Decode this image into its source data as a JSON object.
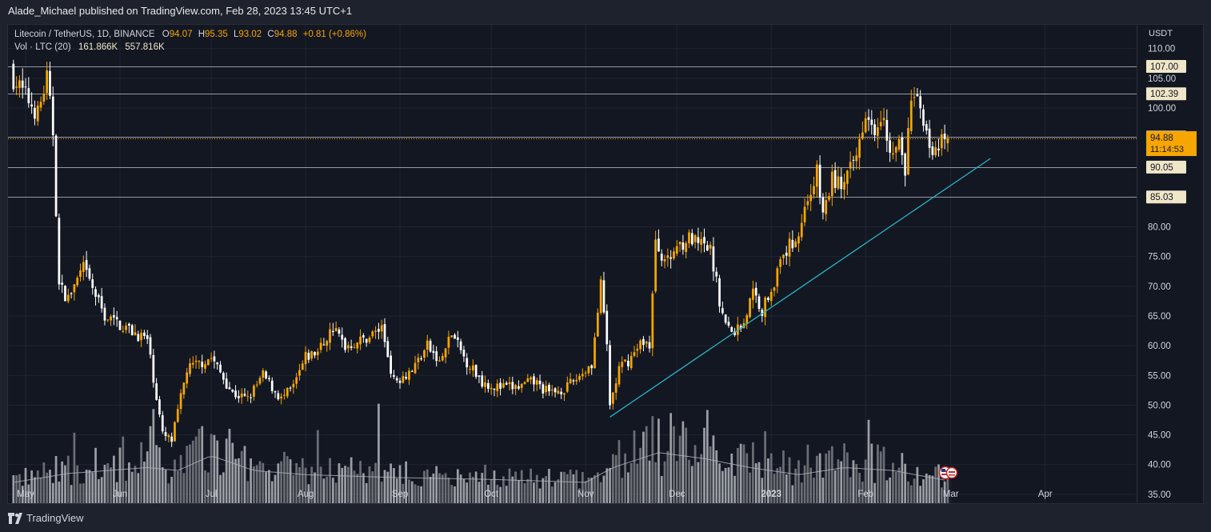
{
  "header": {
    "publisher_line": "Alade_Michael published on TradingView.com, Feb 28, 2023 13:45 UTC+1"
  },
  "footer": {
    "brand": "TradingView"
  },
  "legend": {
    "symbol": "Litecoin / TetherUS, 1D, BINANCE",
    "o_label": "O",
    "o": "94.07",
    "h_label": "H",
    "h": "95.35",
    "l_label": "L",
    "l": "93.02",
    "c_label": "C",
    "c": "94.88",
    "change": "+0.81 (+0.86%)",
    "vol_label": "Vol · LTC (20)",
    "vol": "161.866K",
    "vol_ma": "557.816K"
  },
  "colors": {
    "background": "#131722",
    "up": "#f7a600",
    "down": "#ffffff",
    "trendline": "#26b5c9",
    "level_line": "#9598a1",
    "price_line": "#f7a600"
  },
  "chart_data": {
    "type": "candlestick",
    "symbol": "Litecoin / TetherUS",
    "interval": "1D",
    "exchange": "BINANCE",
    "currency": "USDT",
    "y_range": [
      33.5,
      114
    ],
    "y_ticks": [
      "110.00",
      "105.00",
      "100.00",
      "95.00",
      "90.00",
      "85.00",
      "80.00",
      "75.00",
      "70.00",
      "65.00",
      "60.00",
      "55.00",
      "50.00",
      "45.00",
      "40.00",
      "35.00"
    ],
    "x_labels": [
      "May",
      "Jun",
      "Jul",
      "Aug",
      "Sep",
      "Oct",
      "Nov",
      "Dec",
      "2023",
      "Feb",
      "Mar",
      "Apr"
    ],
    "x_range": [
      "2022-04-26",
      "2023-04-30"
    ],
    "last_candle_date": "2023-02-28",
    "horizontal_levels": [
      "107.00",
      "102.39",
      "95.10",
      "90.05",
      "85.03"
    ],
    "last_price": {
      "value": "94.88",
      "countdown": "11:14:53"
    },
    "trendline": {
      "start": [
        "2022-11-09",
        48.0
      ],
      "end": [
        "2023-03-14",
        91.5
      ]
    },
    "close_path": [
      [
        "2022-04-27",
        105
      ],
      [
        "2022-05-05",
        99
      ],
      [
        "2022-05-08",
        105
      ],
      [
        "2022-05-10",
        96
      ],
      [
        "2022-05-12",
        70
      ],
      [
        "2022-05-15",
        68
      ],
      [
        "2022-05-20",
        73
      ],
      [
        "2022-05-27",
        65
      ],
      [
        "2022-06-03",
        63
      ],
      [
        "2022-06-10",
        61
      ],
      [
        "2022-06-15",
        45
      ],
      [
        "2022-06-18",
        44
      ],
      [
        "2022-06-23",
        56
      ],
      [
        "2022-07-01",
        58
      ],
      [
        "2022-07-08",
        52
      ],
      [
        "2022-07-13",
        51
      ],
      [
        "2022-07-18",
        55
      ],
      [
        "2022-07-24",
        51
      ],
      [
        "2022-07-28",
        53
      ],
      [
        "2022-08-01",
        58
      ],
      [
        "2022-08-05",
        59
      ],
      [
        "2022-08-10",
        63
      ],
      [
        "2022-08-14",
        60
      ],
      [
        "2022-08-20",
        61
      ],
      [
        "2022-08-26",
        63
      ],
      [
        "2022-08-30",
        54
      ],
      [
        "2022-09-05",
        56
      ],
      [
        "2022-09-10",
        60
      ],
      [
        "2022-09-14",
        57
      ],
      [
        "2022-09-18",
        62
      ],
      [
        "2022-09-22",
        58
      ],
      [
        "2022-09-28",
        54
      ],
      [
        "2022-10-03",
        53
      ],
      [
        "2022-10-10",
        53
      ],
      [
        "2022-10-15",
        54
      ],
      [
        "2022-10-20",
        52
      ],
      [
        "2022-10-26",
        53
      ],
      [
        "2022-10-30",
        55
      ],
      [
        "2022-11-03",
        57
      ],
      [
        "2022-11-06",
        70
      ],
      [
        "2022-11-08",
        60
      ],
      [
        "2022-11-09",
        50
      ],
      [
        "2022-11-12",
        56
      ],
      [
        "2022-11-16",
        58
      ],
      [
        "2022-11-20",
        61
      ],
      [
        "2022-11-22",
        60
      ],
      [
        "2022-11-24",
        77
      ],
      [
        "2022-11-28",
        74
      ],
      [
        "2022-12-01",
        77
      ],
      [
        "2022-12-05",
        78
      ],
      [
        "2022-12-08",
        77
      ],
      [
        "2022-12-12",
        76
      ],
      [
        "2022-12-16",
        65
      ],
      [
        "2022-12-19",
        62
      ],
      [
        "2022-12-23",
        64
      ],
      [
        "2022-12-26",
        69
      ],
      [
        "2022-12-29",
        66
      ],
      [
        "2023-01-02",
        71
      ],
      [
        "2023-01-06",
        76
      ],
      [
        "2023-01-10",
        79
      ],
      [
        "2023-01-13",
        85
      ],
      [
        "2023-01-16",
        89
      ],
      [
        "2023-01-18",
        82
      ],
      [
        "2023-01-21",
        88
      ],
      [
        "2023-01-25",
        87
      ],
      [
        "2023-01-29",
        92
      ],
      [
        "2023-02-01",
        100
      ],
      [
        "2023-02-04",
        97
      ],
      [
        "2023-02-07",
        100
      ],
      [
        "2023-02-09",
        92
      ],
      [
        "2023-02-12",
        94
      ],
      [
        "2023-02-14",
        89
      ],
      [
        "2023-02-16",
        102
      ],
      [
        "2023-02-19",
        100
      ],
      [
        "2023-02-21",
        97
      ],
      [
        "2023-02-23",
        91
      ],
      [
        "2023-02-26",
        94
      ],
      [
        "2023-02-28",
        94.88
      ]
    ],
    "volume_ma_path": [
      [
        "2022-04-27",
        37
      ],
      [
        "2022-05-15",
        38.5
      ],
      [
        "2022-06-10",
        39.5
      ],
      [
        "2022-06-20",
        39.0
      ],
      [
        "2022-07-01",
        41.5
      ],
      [
        "2022-07-15",
        39.0
      ],
      [
        "2022-08-01",
        38.3
      ],
      [
        "2022-09-01",
        37.8
      ],
      [
        "2022-10-01",
        37.5
      ],
      [
        "2022-11-01",
        37.0
      ],
      [
        "2022-11-10",
        39.5
      ],
      [
        "2022-11-25",
        42.0
      ],
      [
        "2022-12-10",
        41.0
      ],
      [
        "2022-12-25",
        39.5
      ],
      [
        "2023-01-10",
        38.3
      ],
      [
        "2023-01-25",
        39.5
      ],
      [
        "2023-02-10",
        39.0
      ],
      [
        "2023-02-28",
        37.3
      ]
    ],
    "volume_bar_range": [
      36.3,
      51.3
    ]
  }
}
